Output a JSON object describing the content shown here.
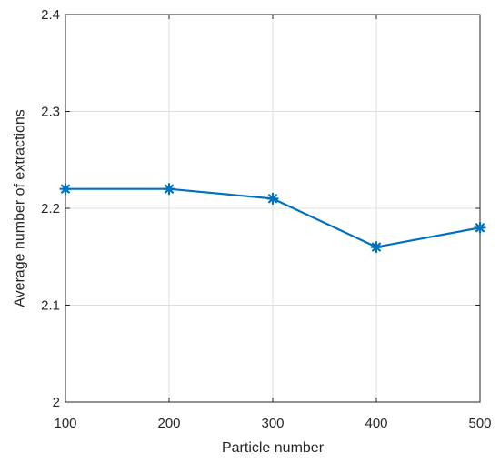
{
  "chart_data": {
    "type": "line",
    "title": "",
    "xlabel": "Particle number",
    "ylabel": "Average number of extractions",
    "x": [
      100,
      200,
      300,
      400,
      500
    ],
    "series": [
      {
        "values": [
          2.22,
          2.22,
          2.21,
          2.16,
          2.18
        ],
        "color": "#0072BD",
        "marker": "asterisk"
      }
    ],
    "xlim": [
      100,
      500
    ],
    "ylim": [
      2.0,
      2.4
    ],
    "xticks": [
      "100",
      "200",
      "300",
      "400",
      "500"
    ],
    "yticks": [
      "2",
      "2.1",
      "2.2",
      "2.3",
      "2.4"
    ],
    "grid": true,
    "legend": "none"
  }
}
